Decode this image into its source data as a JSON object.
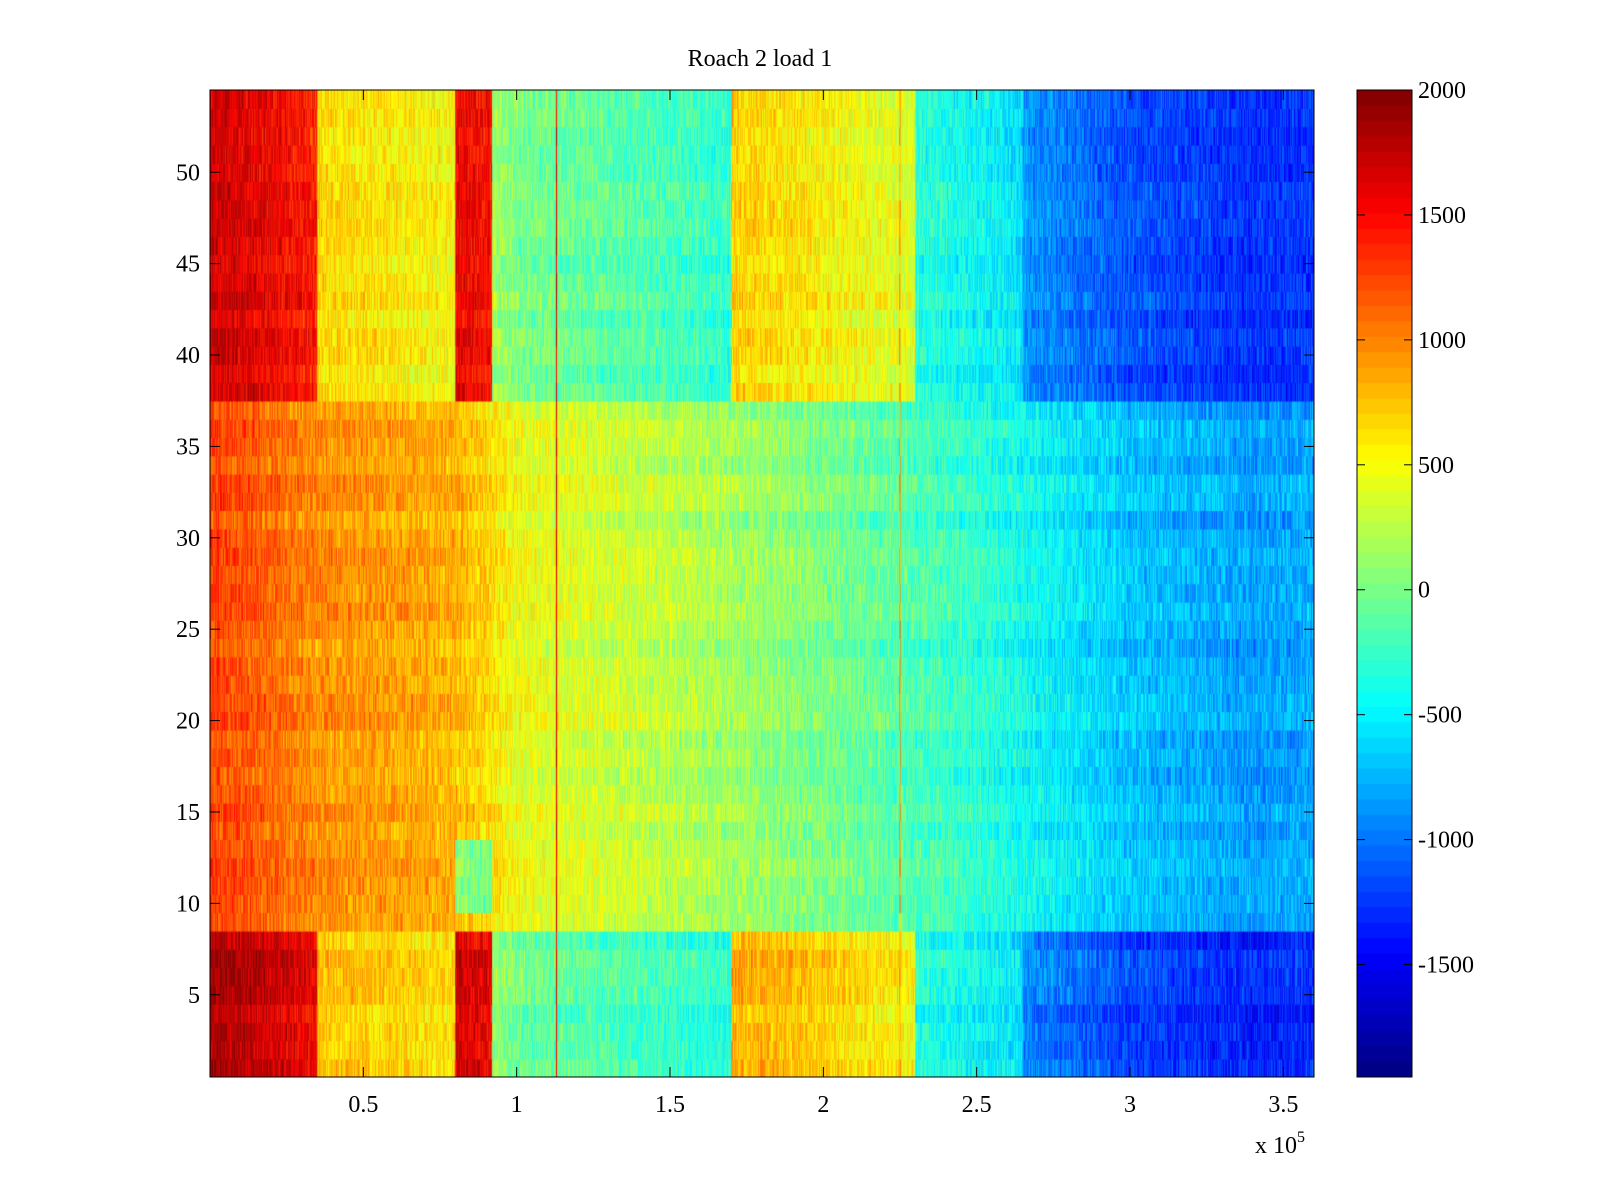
{
  "chart_data": {
    "type": "heatmap",
    "title": "Roach 2 load 1",
    "xlabel": "",
    "ylabel": "",
    "x_exponent_label": "x 10",
    "x_exponent_power": "5",
    "xlim": [
      0,
      360000
    ],
    "ylim": [
      0.5,
      54.5
    ],
    "rows": 54,
    "columns": 1800,
    "colormap": "jet",
    "clim": [
      -1950,
      2000
    ],
    "x_ticks": [
      {
        "value": 50000,
        "label": "0.5"
      },
      {
        "value": 100000,
        "label": "1"
      },
      {
        "value": 150000,
        "label": "1.5"
      },
      {
        "value": 200000,
        "label": "2"
      },
      {
        "value": 250000,
        "label": "2.5"
      },
      {
        "value": 300000,
        "label": "3"
      },
      {
        "value": 350000,
        "label": "3.5"
      }
    ],
    "y_ticks": [
      {
        "value": 5,
        "label": "5"
      },
      {
        "value": 10,
        "label": "10"
      },
      {
        "value": 15,
        "label": "15"
      },
      {
        "value": 20,
        "label": "20"
      },
      {
        "value": 25,
        "label": "25"
      },
      {
        "value": 30,
        "label": "30"
      },
      {
        "value": 35,
        "label": "35"
      },
      {
        "value": 40,
        "label": "40"
      },
      {
        "value": 45,
        "label": "45"
      },
      {
        "value": 50,
        "label": "50"
      }
    ],
    "colorbar_ticks": [
      {
        "value": 2000,
        "label": "2000"
      },
      {
        "value": 1500,
        "label": "1500"
      },
      {
        "value": 1000,
        "label": "1000"
      },
      {
        "value": 500,
        "label": "500"
      },
      {
        "value": 0,
        "label": "0"
      },
      {
        "value": -500,
        "label": "-500"
      },
      {
        "value": -1000,
        "label": "-1000"
      },
      {
        "value": -1500,
        "label": "-1500"
      }
    ],
    "column_profile": {
      "x": [
        0,
        15000,
        35000,
        55000,
        80000,
        91000,
        100000,
        150000,
        200000,
        250000,
        300000,
        340000,
        360000
      ],
      "value": [
        1250,
        1150,
        950,
        900,
        800,
        650,
        450,
        250,
        0,
        -300,
        -700,
        -850,
        -800
      ]
    },
    "row_bands": [
      {
        "rows": [
          1,
          8
        ],
        "offsets": [
          {
            "x": [
              0,
              35000
            ],
            "delta": 600
          },
          {
            "x": [
              35000,
              80000
            ],
            "delta": -200
          },
          {
            "x": [
              80000,
              92000
            ],
            "delta": 900
          },
          {
            "x": [
              92000,
              170000
            ],
            "delta": -500
          },
          {
            "x": [
              170000,
              230000
            ],
            "delta": 700
          },
          {
            "x": [
              230000,
              265000
            ],
            "delta": -150
          },
          {
            "x": [
              265000,
              360000
            ],
            "delta": -500
          }
        ]
      },
      {
        "rows": [
          38,
          54
        ],
        "offsets": [
          {
            "x": [
              0,
              35000
            ],
            "delta": 450
          },
          {
            "x": [
              35000,
              80000
            ],
            "delta": -300
          },
          {
            "x": [
              80000,
              92000
            ],
            "delta": 800
          },
          {
            "x": [
              92000,
              170000
            ],
            "delta": -450
          },
          {
            "x": [
              170000,
              230000
            ],
            "delta": 550
          },
          {
            "x": [
              230000,
              265000
            ],
            "delta": -150
          },
          {
            "x": [
              265000,
              360000
            ],
            "delta": -450
          }
        ]
      },
      {
        "rows": [
          10,
          13
        ],
        "offsets": [
          {
            "x": [
              80000,
              92000
            ],
            "delta": -750
          }
        ]
      }
    ],
    "column_lines": [
      {
        "x": 113000,
        "value": 1600
      },
      {
        "x": 225000,
        "value": 900
      }
    ],
    "noise_amplitude": 280
  }
}
